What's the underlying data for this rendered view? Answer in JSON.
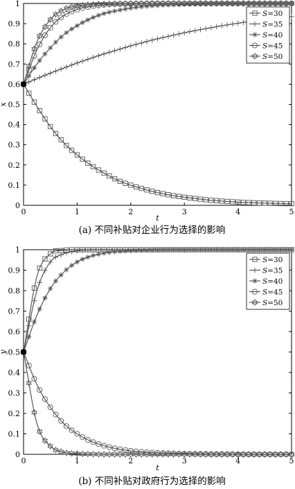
{
  "chart_data": [
    {
      "type": "line",
      "caption": "(a) 不同补贴对企业行为选择的影响",
      "xlabel": "t",
      "ylabel": "x",
      "xlim": [
        0,
        5
      ],
      "ylim": [
        0,
        1
      ],
      "xticks": [
        "0",
        "1",
        "2",
        "3",
        "4",
        "5"
      ],
      "yticks": [
        "0",
        "0.1",
        "0.2",
        "0.3",
        "0.4",
        "0.5",
        "0.6",
        "0.7",
        "0.8",
        "0.9",
        "1"
      ],
      "legend_position": "top-right",
      "x": [
        0,
        0.25,
        0.5,
        0.75,
        1.0,
        1.25,
        1.5,
        1.75,
        2.0,
        2.25,
        2.5,
        2.75,
        3.0,
        3.25,
        3.5,
        3.75,
        4.0,
        4.25,
        4.5,
        4.75,
        5.0
      ],
      "series": [
        {
          "name": "S=30",
          "marker": "square",
          "values": [
            0.6,
            0.49,
            0.39,
            0.31,
            0.25,
            0.2,
            0.16,
            0.125,
            0.1,
            0.08,
            0.063,
            0.05,
            0.04,
            0.032,
            0.025,
            0.02,
            0.016,
            0.013,
            0.011,
            0.009,
            0.008
          ]
        },
        {
          "name": "S=35",
          "marker": "plus",
          "values": [
            0.6,
            0.628,
            0.655,
            0.68,
            0.705,
            0.728,
            0.75,
            0.77,
            0.79,
            0.808,
            0.825,
            0.84,
            0.855,
            0.868,
            0.88,
            0.892,
            0.902,
            0.912,
            0.92,
            0.928,
            0.935
          ]
        },
        {
          "name": "S=40",
          "marker": "star",
          "values": [
            0.6,
            0.7,
            0.78,
            0.845,
            0.89,
            0.925,
            0.95,
            0.965,
            0.977,
            0.985,
            0.99,
            0.993,
            0.995,
            0.997,
            0.998,
            0.999,
            0.999,
            1.0,
            1.0,
            1.0,
            1.0
          ]
        },
        {
          "name": "S=45",
          "marker": "circle",
          "values": [
            0.6,
            0.77,
            0.88,
            0.94,
            0.97,
            0.985,
            0.993,
            0.997,
            0.998,
            0.999,
            1.0,
            1.0,
            1.0,
            1.0,
            1.0,
            1.0,
            1.0,
            1.0,
            1.0,
            1.0,
            1.0
          ]
        },
        {
          "name": "S=50",
          "marker": "hexagram",
          "values": [
            0.6,
            0.81,
            0.92,
            0.97,
            0.988,
            0.995,
            0.998,
            0.999,
            1.0,
            1.0,
            1.0,
            1.0,
            1.0,
            1.0,
            1.0,
            1.0,
            1.0,
            1.0,
            1.0,
            1.0,
            1.0
          ]
        }
      ]
    },
    {
      "type": "line",
      "caption": "(b) 不同补贴对政府行为选择的影响",
      "xlabel": "t",
      "ylabel": "y",
      "xlim": [
        0,
        5
      ],
      "ylim": [
        0,
        1
      ],
      "xticks": [
        "0",
        "1",
        "2",
        "3",
        "4",
        "5"
      ],
      "yticks": [
        "0",
        "0.1",
        "0.2",
        "0.3",
        "0.4",
        "0.5",
        "0.6",
        "0.7",
        "0.8",
        "0.9",
        "1"
      ],
      "legend_position": "top-right",
      "x": [
        0,
        0.25,
        0.5,
        0.75,
        1.0,
        1.25,
        1.5,
        1.75,
        2.0,
        2.25,
        2.5,
        2.75,
        3.0,
        3.25,
        3.5,
        3.75,
        4.0,
        4.25,
        4.5,
        4.75,
        5.0
      ],
      "series": [
        {
          "name": "S=30",
          "marker": "square",
          "values": [
            0.5,
            0.87,
            0.98,
            0.997,
            1.0,
            1.0,
            1.0,
            1.0,
            1.0,
            1.0,
            1.0,
            1.0,
            1.0,
            1.0,
            1.0,
            1.0,
            1.0,
            1.0,
            1.0,
            1.0,
            1.0
          ]
        },
        {
          "name": "S=35",
          "marker": "plus",
          "values": [
            0.5,
            0.8,
            0.94,
            0.98,
            0.995,
            0.999,
            1.0,
            1.0,
            1.0,
            1.0,
            1.0,
            1.0,
            1.0,
            1.0,
            1.0,
            1.0,
            1.0,
            1.0,
            1.0,
            1.0,
            1.0
          ]
        },
        {
          "name": "S=40",
          "marker": "star",
          "values": [
            0.5,
            0.68,
            0.81,
            0.89,
            0.94,
            0.968,
            0.983,
            0.991,
            0.995,
            0.997,
            0.999,
            1.0,
            1.0,
            1.0,
            1.0,
            1.0,
            1.0,
            1.0,
            1.0,
            1.0,
            1.0
          ]
        },
        {
          "name": "S=45",
          "marker": "circle",
          "values": [
            0.5,
            0.34,
            0.23,
            0.15,
            0.1,
            0.065,
            0.042,
            0.027,
            0.017,
            0.011,
            0.007,
            0.005,
            0.003,
            0.002,
            0.001,
            0.001,
            0.0,
            0.0,
            0.0,
            0.0,
            0.0
          ]
        },
        {
          "name": "S=50",
          "marker": "hexagram",
          "values": [
            0.5,
            0.15,
            0.04,
            0.01,
            0.003,
            0.001,
            0.0,
            0.0,
            0.0,
            0.0,
            0.0,
            0.0,
            0.0,
            0.0,
            0.0,
            0.0,
            0.0,
            0.0,
            0.0,
            0.0,
            0.0
          ]
        }
      ]
    }
  ]
}
